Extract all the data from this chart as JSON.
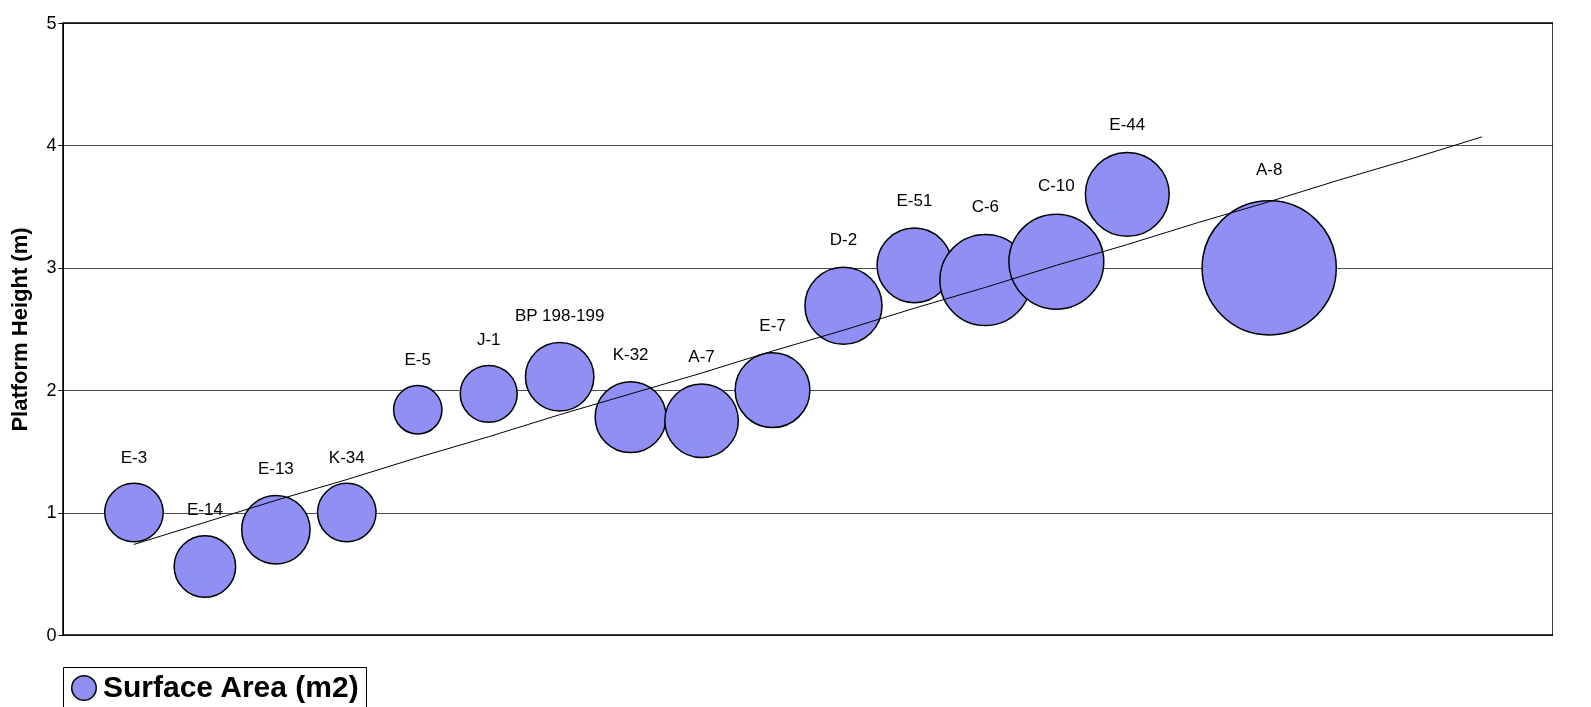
{
  "chart_data": {
    "type": "bubble",
    "ylabel": "Platform Height (m)",
    "categories": [
      null,
      null,
      null,
      null,
      null,
      null,
      null,
      null,
      null,
      null,
      null,
      null,
      null,
      null,
      null,
      null,
      null,
      null,
      null,
      null
    ],
    "ylim": [
      0,
      5
    ],
    "yticks": [
      0,
      1,
      2,
      3,
      4,
      5
    ],
    "grid": "y",
    "legend": "bottom",
    "relative": false,
    "series": [
      {
        "name": "Surface Area (m2)",
        "color": "#9090f4",
        "values": [
          1.0,
          0.56,
          0.86,
          1.0,
          1.84,
          1.97,
          2.11,
          1.78,
          1.75,
          2.0,
          2.69,
          3.02,
          2.9,
          3.05,
          3.6,
          null,
          3.0,
          null,
          null,
          null
        ],
        "sizes": [
          0.19,
          0.21,
          0.26,
          0.19,
          0.13,
          0.18,
          0.26,
          0.28,
          0.3,
          0.31,
          0.33,
          0.31,
          0.46,
          0.5,
          0.39,
          null,
          1,
          null,
          null,
          null
        ],
        "value_labels": [
          "E-3",
          "E-14",
          "E-13",
          "K-34",
          "E-5",
          "J-1",
          "BP 198-199",
          "K-32",
          "A-7",
          "E-7",
          "D-2",
          "E-51",
          "C-6",
          "C-10",
          "E-44",
          null,
          "A-8",
          null,
          null,
          null
        ]
      },
      {
        "type": "line",
        "color": "#000000",
        "values": [
          0.74,
          0.92,
          1.1,
          1.27,
          1.45,
          1.62,
          1.8,
          1.97,
          2.14,
          2.32,
          2.49,
          2.67,
          2.84,
          3.02,
          3.19,
          3.37,
          3.54,
          3.72,
          3.89,
          4.07
        ]
      }
    ]
  }
}
